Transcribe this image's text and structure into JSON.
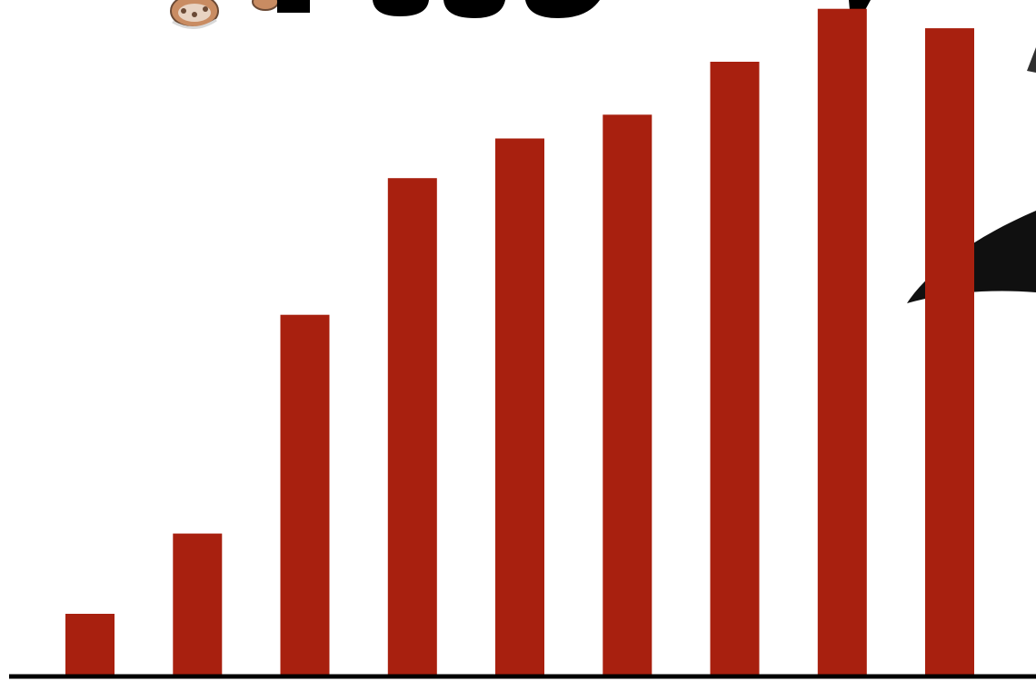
{
  "chart_data": {
    "type": "bar",
    "categories": [
      "",
      "",
      "",
      "",
      "",
      "",
      "",
      "",
      ""
    ],
    "values": [
      69,
      160,
      408,
      563,
      608,
      635,
      695,
      755,
      733
    ],
    "ylim": [
      0,
      765
    ],
    "bar_color": "#a8200f",
    "axis_color": "#000000",
    "grid": false,
    "legend": "none"
  }
}
